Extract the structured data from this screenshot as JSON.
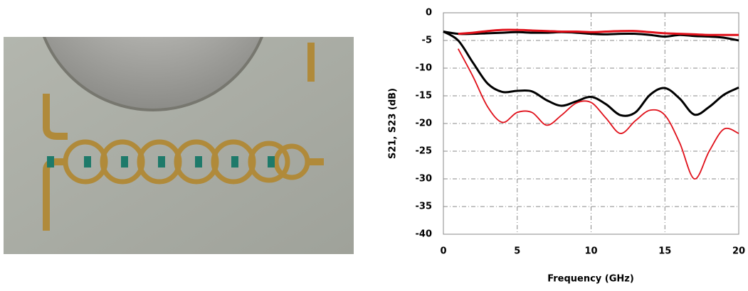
{
  "chart_data": {
    "type": "line",
    "x_label": "Frequency (GHz)",
    "y_label": "S21, S23 (dB)",
    "x": [
      0,
      1,
      2,
      3,
      4,
      5,
      6,
      7,
      8,
      9,
      10,
      11,
      12,
      13,
      14,
      15,
      16,
      17,
      18,
      19,
      20
    ],
    "series": [
      {
        "color": "#000000",
        "values": [
          -3.4,
          -3.8,
          -3.8,
          -3.7,
          -3.6,
          -3.5,
          -3.6,
          -3.6,
          -3.5,
          -3.6,
          -3.8,
          -3.9,
          -3.8,
          -3.8,
          -4.0,
          -4.3,
          -4.0,
          -4.2,
          -4.3,
          -4.5,
          -5.0
        ]
      },
      {
        "color": "#e0101a",
        "values": [
          null,
          -3.8,
          -3.6,
          -3.3,
          -3.1,
          -3.1,
          -3.2,
          -3.3,
          -3.4,
          -3.4,
          -3.5,
          -3.4,
          -3.3,
          -3.3,
          -3.5,
          -3.7,
          -3.8,
          -3.9,
          -4.0,
          -4.0,
          -4.0
        ]
      },
      {
        "color": "#000000",
        "values": [
          -3.4,
          -5,
          -9,
          -12.8,
          -14.3,
          -14.1,
          -14.2,
          -15.8,
          -16.8,
          -16,
          -15.2,
          -16.5,
          -18.5,
          -18,
          -14.8,
          -13.6,
          -15.5,
          -18.4,
          -17,
          -14.8,
          -13.5
        ]
      },
      {
        "color": "#e0101a",
        "values": [
          null,
          -6.5,
          -11.5,
          -17,
          -19.8,
          -18,
          -18,
          -20.3,
          -18.5,
          -16.3,
          -16.2,
          -19,
          -21.8,
          -19.5,
          -17.6,
          -18.5,
          -23.5,
          -30,
          -25,
          -21,
          -21.8
        ]
      }
    ],
    "xlim": [
      0,
      20
    ],
    "xticks": [
      0,
      5,
      10,
      15,
      20
    ],
    "ylim": [
      -40,
      0
    ],
    "yticks": [
      -40,
      -35,
      -30,
      -25,
      -20,
      -15,
      -10,
      -5,
      0
    ],
    "grid": true
  }
}
